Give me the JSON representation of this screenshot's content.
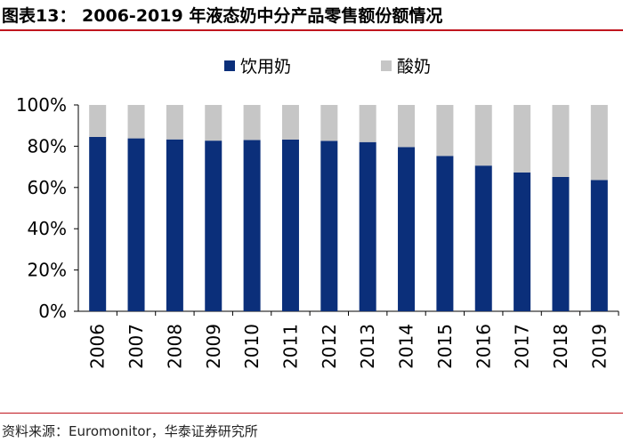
{
  "title": "图表13：  2006-2019 年液态奶中分产品零售额份额情况",
  "source": "资料来源：Euromonitor，华泰证券研究所",
  "colors": {
    "series1": "#0b2f7a",
    "series2": "#c6c6c6",
    "accent": "#c0161e"
  },
  "chart_data": {
    "type": "bar",
    "stacked": true,
    "categories": [
      "2006",
      "2007",
      "2008",
      "2009",
      "2010",
      "2011",
      "2012",
      "2013",
      "2014",
      "2015",
      "2016",
      "2017",
      "2018",
      "2019"
    ],
    "series": [
      {
        "name": "饮用奶",
        "values": [
          84.5,
          83.8,
          83.3,
          82.7,
          83.0,
          83.2,
          82.6,
          82.0,
          79.6,
          75.3,
          70.6,
          67.3,
          65.1,
          63.6
        ]
      },
      {
        "name": "酸奶",
        "values": [
          15.5,
          16.2,
          16.7,
          17.3,
          17.0,
          16.8,
          17.4,
          18.0,
          20.4,
          24.7,
          29.4,
          32.7,
          34.9,
          36.4
        ]
      }
    ],
    "yticks": [
      "0%",
      "20%",
      "40%",
      "60%",
      "80%",
      "100%"
    ],
    "ylim": [
      0,
      100
    ],
    "legend_position": "top",
    "grid": false
  }
}
